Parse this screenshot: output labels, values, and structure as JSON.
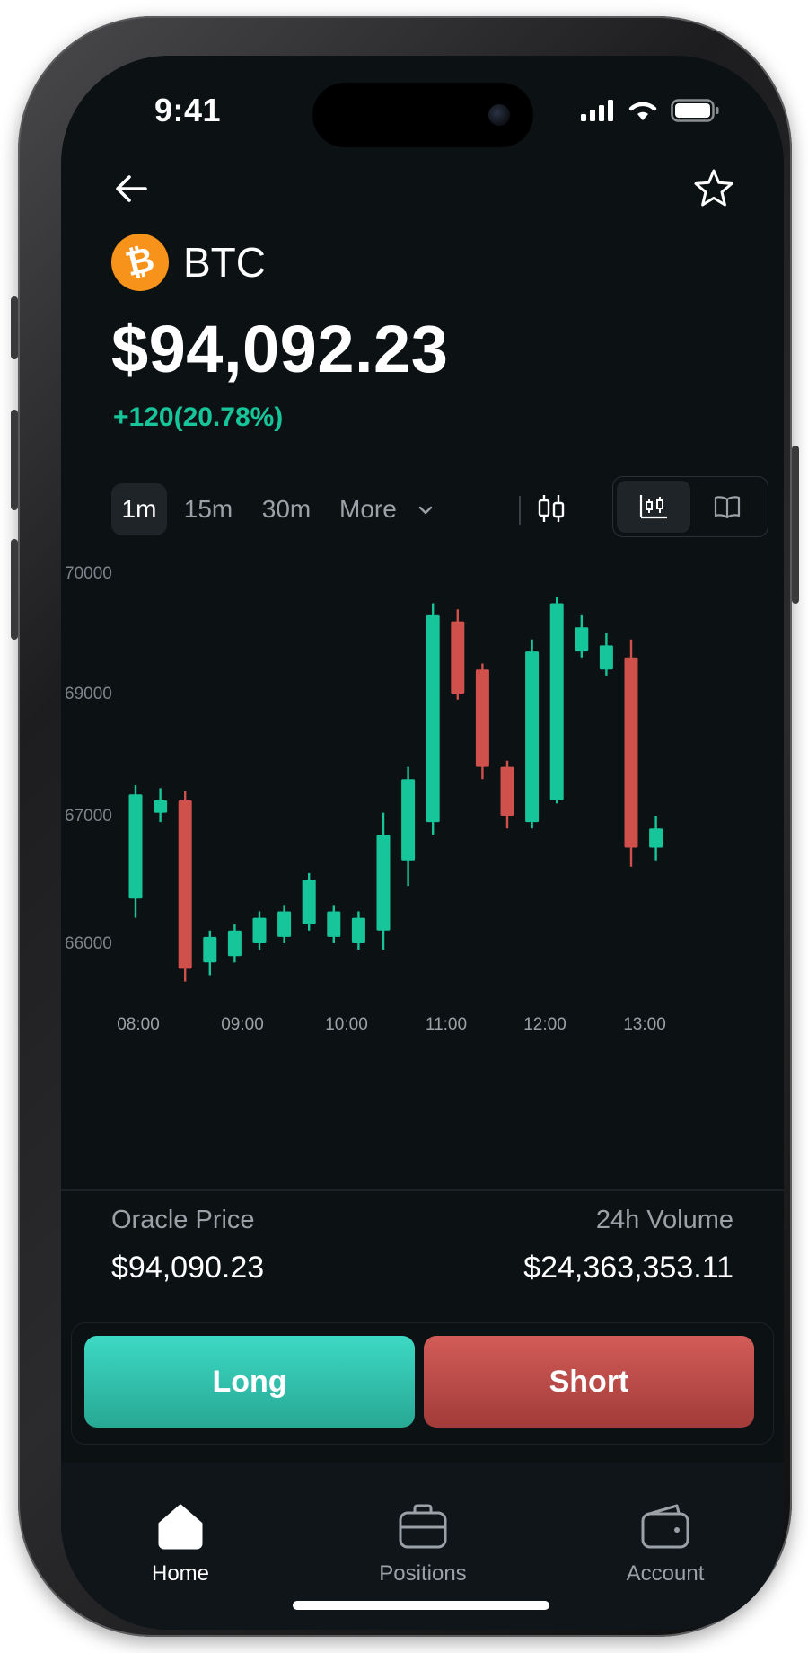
{
  "status": {
    "time": "9:41"
  },
  "asset": {
    "symbol": "BTC",
    "logo_glyph": "₿",
    "logo_color": "#f7931a"
  },
  "price": "$94,092.23",
  "change": "+120(20.78%)",
  "colors": {
    "up": "#17c59a",
    "down": "#d0504c",
    "background": "#0c1114"
  },
  "timeframes": {
    "items": [
      "1m",
      "15m",
      "30m",
      "More"
    ],
    "selected": "1m"
  },
  "icons": {
    "back": "arrow-left-icon",
    "favorite": "star-icon",
    "candle_type": "candlestick-icon",
    "chart_view": "chart-icon",
    "orderbook_view": "book-icon"
  },
  "chart_data": {
    "type": "candlestick",
    "y_ticks": [
      "70000",
      "69000",
      "67000",
      "66000"
    ],
    "x_ticks": [
      "08:00",
      "09:00",
      "10:00",
      "11:00",
      "12:00",
      "13:00"
    ],
    "candles": [
      {
        "o": 66350,
        "h": 67500,
        "l": 66200,
        "c": 67350
      },
      {
        "o": 67050,
        "h": 67450,
        "l": 66950,
        "c": 67250
      },
      {
        "o": 67250,
        "h": 67400,
        "l": 65700,
        "c": 65800
      },
      {
        "o": 65850,
        "h": 66100,
        "l": 65750,
        "c": 66050
      },
      {
        "o": 65900,
        "h": 66150,
        "l": 65850,
        "c": 66100
      },
      {
        "o": 66000,
        "h": 66250,
        "l": 65950,
        "c": 66200
      },
      {
        "o": 66050,
        "h": 66300,
        "l": 66000,
        "c": 66250
      },
      {
        "o": 66150,
        "h": 66550,
        "l": 66100,
        "c": 66500
      },
      {
        "o": 66050,
        "h": 66300,
        "l": 66000,
        "c": 66250
      },
      {
        "o": 66000,
        "h": 66250,
        "l": 65950,
        "c": 66200
      },
      {
        "o": 66100,
        "h": 67050,
        "l": 65950,
        "c": 66850
      },
      {
        "o": 66650,
        "h": 67800,
        "l": 66450,
        "c": 67600
      },
      {
        "o": 66950,
        "h": 69750,
        "l": 66850,
        "c": 69650
      },
      {
        "o": 69600,
        "h": 69700,
        "l": 68900,
        "c": 69000
      },
      {
        "o": 69200,
        "h": 69250,
        "l": 67600,
        "c": 67800
      },
      {
        "o": 67800,
        "h": 67900,
        "l": 66900,
        "c": 67000
      },
      {
        "o": 66950,
        "h": 69450,
        "l": 66900,
        "c": 69350
      },
      {
        "o": 67250,
        "h": 69800,
        "l": 67200,
        "c": 69750
      },
      {
        "o": 69350,
        "h": 69650,
        "l": 69300,
        "c": 69550
      },
      {
        "o": 69200,
        "h": 69500,
        "l": 69150,
        "c": 69400
      },
      {
        "o": 69300,
        "h": 69450,
        "l": 66600,
        "c": 66750
      },
      {
        "o": 66750,
        "h": 67000,
        "l": 66650,
        "c": 66900
      }
    ]
  },
  "stats": {
    "oracle_label": "Oracle Price",
    "oracle_value": "$94,090.23",
    "volume_label": "24h Volume",
    "volume_value": "$24,363,353.11"
  },
  "actions": {
    "long": "Long",
    "short": "Short"
  },
  "tabs": [
    {
      "label": "Home",
      "icon": "home-icon",
      "active": true
    },
    {
      "label": "Positions",
      "icon": "briefcase-icon",
      "active": false
    },
    {
      "label": "Account",
      "icon": "wallet-icon",
      "active": false
    }
  ]
}
